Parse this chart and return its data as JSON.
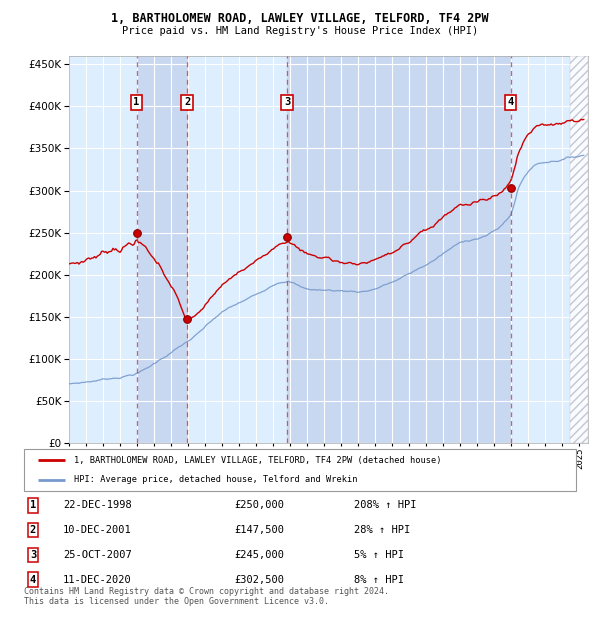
{
  "title1": "1, BARTHOLOMEW ROAD, LAWLEY VILLAGE, TELFORD, TF4 2PW",
  "title2": "Price paid vs. HM Land Registry's House Price Index (HPI)",
  "ylim": [
    0,
    460000
  ],
  "yticks": [
    0,
    50000,
    100000,
    150000,
    200000,
    250000,
    300000,
    350000,
    400000,
    450000
  ],
  "ytick_labels": [
    "£0",
    "£50K",
    "£100K",
    "£150K",
    "£200K",
    "£250K",
    "£300K",
    "£350K",
    "£400K",
    "£450K"
  ],
  "xlim_start": 1995.0,
  "xlim_end": 2025.5,
  "sale_dates": [
    1998.97,
    2001.94,
    2007.81,
    2020.95
  ],
  "sale_prices": [
    250000,
    147500,
    245000,
    302500
  ],
  "sale_labels": [
    "1",
    "2",
    "3",
    "4"
  ],
  "sale_label_info": [
    {
      "num": "1",
      "date": "22-DEC-1998",
      "price": "£250,000",
      "hpi": "208% ↑ HPI"
    },
    {
      "num": "2",
      "date": "10-DEC-2001",
      "price": "£147,500",
      "hpi": "28% ↑ HPI"
    },
    {
      "num": "3",
      "date": "25-OCT-2007",
      "price": "£245,000",
      "hpi": "5% ↑ HPI"
    },
    {
      "num": "4",
      "date": "11-DEC-2020",
      "price": "£302,500",
      "hpi": "8% ↑ HPI"
    }
  ],
  "line_color_red": "#cc0000",
  "line_color_blue": "#7799cc",
  "dot_color_red": "#cc0000",
  "background_color": "#ffffff",
  "plot_bg_color": "#ddeeff",
  "shaded_region_color": "#c8d8f0",
  "grid_color": "#ffffff",
  "hatch_color": "#bbbbcc",
  "footer_text": "Contains HM Land Registry data © Crown copyright and database right 2024.\nThis data is licensed under the Open Government Licence v3.0.",
  "legend_text_red": "1, BARTHOLOMEW ROAD, LAWLEY VILLAGE, TELFORD, TF4 2PW (detached house)",
  "legend_text_blue": "HPI: Average price, detached house, Telford and Wrekin"
}
